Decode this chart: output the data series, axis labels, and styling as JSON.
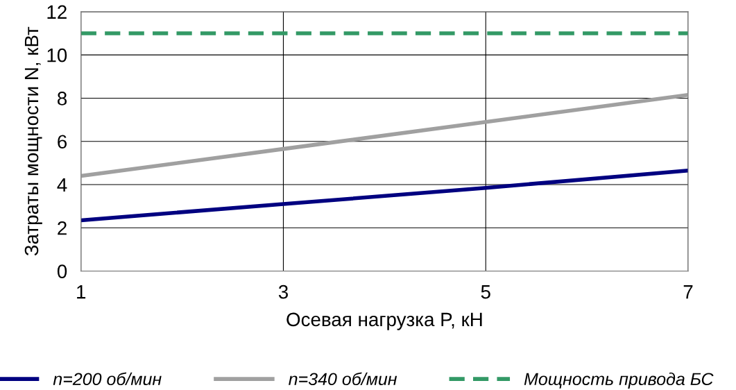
{
  "chart_data": {
    "type": "line",
    "xlabel": "Осевая нагрузка P, кН",
    "ylabel": "Затраты мощности N, кВт",
    "xlim": [
      1,
      7
    ],
    "xticks": [
      1,
      3,
      5,
      7
    ],
    "ylim": [
      0,
      12
    ],
    "yticks": [
      0,
      2,
      4,
      6,
      8,
      10,
      12
    ],
    "grid": true,
    "legend": "bottom",
    "marker": "none",
    "series": [
      {
        "name": "n=200 об/мин",
        "color": "#000080",
        "x": [
          1,
          3,
          5,
          7
        ],
        "values": [
          2.35,
          3.1,
          3.85,
          4.65
        ]
      },
      {
        "name": "n=340 об/мин",
        "color": "#a0a0a0",
        "x": [
          1,
          3,
          5,
          7
        ],
        "values": [
          4.4,
          5.65,
          6.9,
          8.15
        ]
      },
      {
        "name": "Мощность привода БС",
        "color": "#339966",
        "x": [
          1,
          7
        ],
        "values": [
          11,
          11
        ],
        "line_style": "dashed"
      }
    ]
  }
}
